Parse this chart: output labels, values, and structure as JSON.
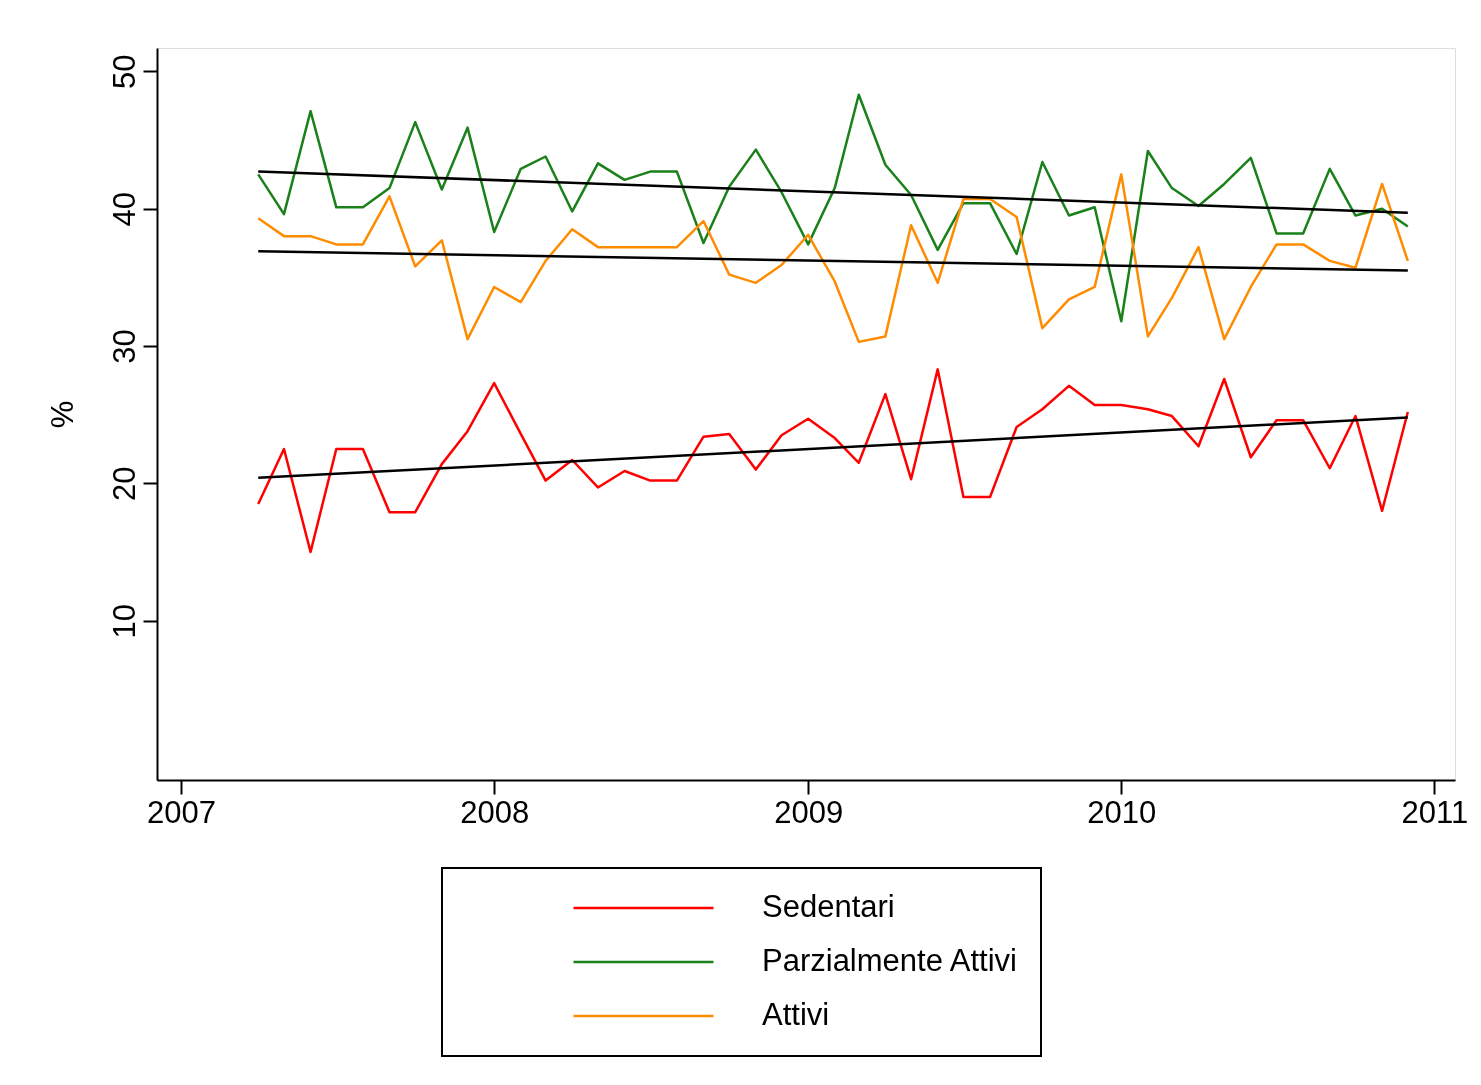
{
  "chart_data": {
    "type": "line",
    "ylabel": "%",
    "x": [
      "2007-04",
      "2007-05",
      "2007-06",
      "2007-07",
      "2007-08",
      "2007-09",
      "2007-10",
      "2007-11",
      "2007-12",
      "2008-01",
      "2008-02",
      "2008-03",
      "2008-04",
      "2008-05",
      "2008-06",
      "2008-07",
      "2008-08",
      "2008-09",
      "2008-10",
      "2008-11",
      "2008-12",
      "2009-01",
      "2009-02",
      "2009-03",
      "2009-04",
      "2009-05",
      "2009-06",
      "2009-07",
      "2009-08",
      "2009-09",
      "2009-10",
      "2009-11",
      "2009-12",
      "2010-01",
      "2010-02",
      "2010-03",
      "2010-04",
      "2010-05",
      "2010-06",
      "2010-07",
      "2010-08",
      "2010-09",
      "2010-10",
      "2010-11",
      "2010-12"
    ],
    "series": [
      {
        "name": "Sedentari",
        "color": "#ff0000",
        "values": [
          18.5,
          22.5,
          15.0,
          22.5,
          22.5,
          17.9,
          17.9,
          21.4,
          23.8,
          27.3,
          23.6,
          20.2,
          21.7,
          19.7,
          20.9,
          20.2,
          20.2,
          23.4,
          23.6,
          21.0,
          23.5,
          24.7,
          23.3,
          21.5,
          26.5,
          20.3,
          28.3,
          19.0,
          19.0,
          24.1,
          25.4,
          27.1,
          25.7,
          25.7,
          25.4,
          24.9,
          22.7,
          27.6,
          21.9,
          24.6,
          24.6,
          21.1,
          24.9,
          18.0,
          25.2
        ]
      },
      {
        "name": "Parzialmente Attivi",
        "color": "#1a801a",
        "values": [
          42.5,
          39.6,
          47.1,
          40.1,
          40.1,
          41.5,
          46.3,
          41.4,
          45.9,
          38.3,
          42.9,
          43.8,
          39.8,
          43.3,
          42.1,
          42.7,
          42.7,
          37.5,
          41.6,
          44.3,
          41.2,
          37.4,
          41.5,
          48.3,
          43.2,
          41.0,
          37.0,
          40.4,
          40.4,
          36.7,
          43.4,
          39.5,
          40.1,
          31.8,
          44.2,
          41.5,
          40.2,
          41.8,
          43.7,
          38.2,
          38.2,
          42.9,
          39.5,
          40.0,
          38.7
        ]
      },
      {
        "name": "Attivi",
        "color": "#ff8c00",
        "values": [
          39.3,
          38.0,
          38.0,
          37.4,
          37.4,
          40.9,
          35.8,
          37.7,
          30.5,
          34.3,
          33.2,
          36.2,
          38.5,
          37.2,
          37.2,
          37.2,
          37.2,
          39.1,
          35.2,
          34.6,
          35.9,
          38.1,
          34.7,
          30.3,
          30.7,
          38.8,
          34.6,
          40.7,
          40.7,
          39.4,
          31.3,
          33.4,
          34.3,
          42.5,
          30.7,
          33.5,
          37.2,
          30.5,
          34.3,
          37.4,
          37.4,
          36.2,
          35.7,
          41.8,
          36.2
        ]
      },
      {
        "type": "line",
        "color": "#000000",
        "x": [
          "2007-04",
          "2010-12"
        ],
        "values": [
          20.4,
          24.8
        ]
      },
      {
        "type": "line",
        "color": "#000000",
        "x": [
          "2007-04",
          "2010-12"
        ],
        "values": [
          42.7,
          39.7
        ]
      },
      {
        "type": "line",
        "color": "#000000",
        "x": [
          "2007-04",
          "2010-12"
        ],
        "values": [
          36.9,
          35.5
        ]
      }
    ],
    "xlim": [
      "2006-12-04",
      "2011-01-25"
    ],
    "xticks": [
      "2007",
      "2008",
      "2009",
      "2010",
      "2011"
    ],
    "ylim": [
      -1.6,
      51.7
    ],
    "yticks": [
      10,
      20,
      30,
      40,
      50
    ],
    "grid": false,
    "legend": "bottom",
    "marker": "none",
    "line_style": "solid"
  }
}
